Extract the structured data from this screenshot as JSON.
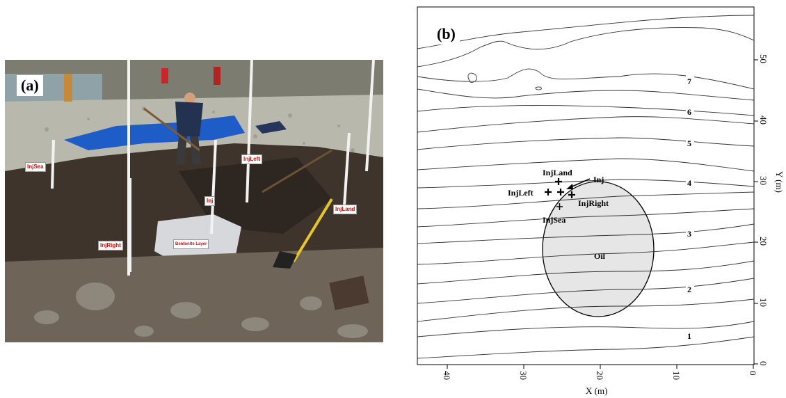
{
  "panel_a": {
    "letter": "(a)",
    "labels": {
      "inj_sea": "InjSea",
      "inj_left": "InjLeft",
      "inj": "Inj",
      "inj_land": "InjLand",
      "inj_right": "InjRight",
      "bentonite": "Bentonite Layer"
    }
  },
  "panel_b": {
    "letter": "(b)",
    "xlabel": "X (m)",
    "ylabel": "Y (m)",
    "x_ticks": [
      "40",
      "30",
      "20",
      "10",
      "0"
    ],
    "y_ticks": [
      "50",
      "40",
      "30",
      "20",
      "10",
      "0"
    ],
    "contour_labels": [
      "7",
      "6",
      "5",
      "4",
      "3",
      "2",
      "1"
    ],
    "oil_label": "Oil",
    "wells": {
      "inj_land": "InjLand",
      "inj": "Inj",
      "inj_left": "InjLeft",
      "inj_right": "InjRight",
      "inj_sea": "InjSea"
    }
  },
  "colors": {
    "oil_fill": "#e6e6e6",
    "tag_text": "#cc1010",
    "tarp": "#1e5cc8"
  }
}
